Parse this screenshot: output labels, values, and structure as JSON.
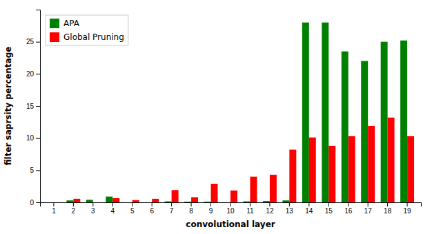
{
  "chart_data": {
    "type": "bar",
    "categories": [
      1,
      2,
      3,
      4,
      5,
      6,
      7,
      8,
      9,
      10,
      11,
      12,
      13,
      14,
      15,
      16,
      17,
      18,
      19
    ],
    "series": [
      {
        "name": "APA",
        "color": "#008000",
        "values": [
          0.0,
          0.3,
          0.4,
          0.9,
          0.0,
          0.0,
          0.15,
          0.1,
          0.1,
          0.0,
          0.15,
          0.2,
          0.3,
          28.0,
          28.0,
          23.5,
          22.0,
          25.0,
          25.2
        ]
      },
      {
        "name": "Global Pruning",
        "color": "#ff0000",
        "values": [
          0.0,
          0.55,
          0.0,
          0.65,
          0.35,
          0.55,
          1.9,
          0.8,
          2.9,
          1.85,
          4.0,
          4.3,
          8.2,
          10.1,
          8.8,
          10.3,
          11.9,
          13.2,
          10.3
        ]
      }
    ],
    "xlabel": "convolutional layer",
    "ylabel": "filter saprsity percentage",
    "ylim": [
      0,
      30
    ],
    "yticks": [
      0,
      5,
      10,
      15,
      20,
      25
    ],
    "legend": "upper left",
    "grid": false
  }
}
